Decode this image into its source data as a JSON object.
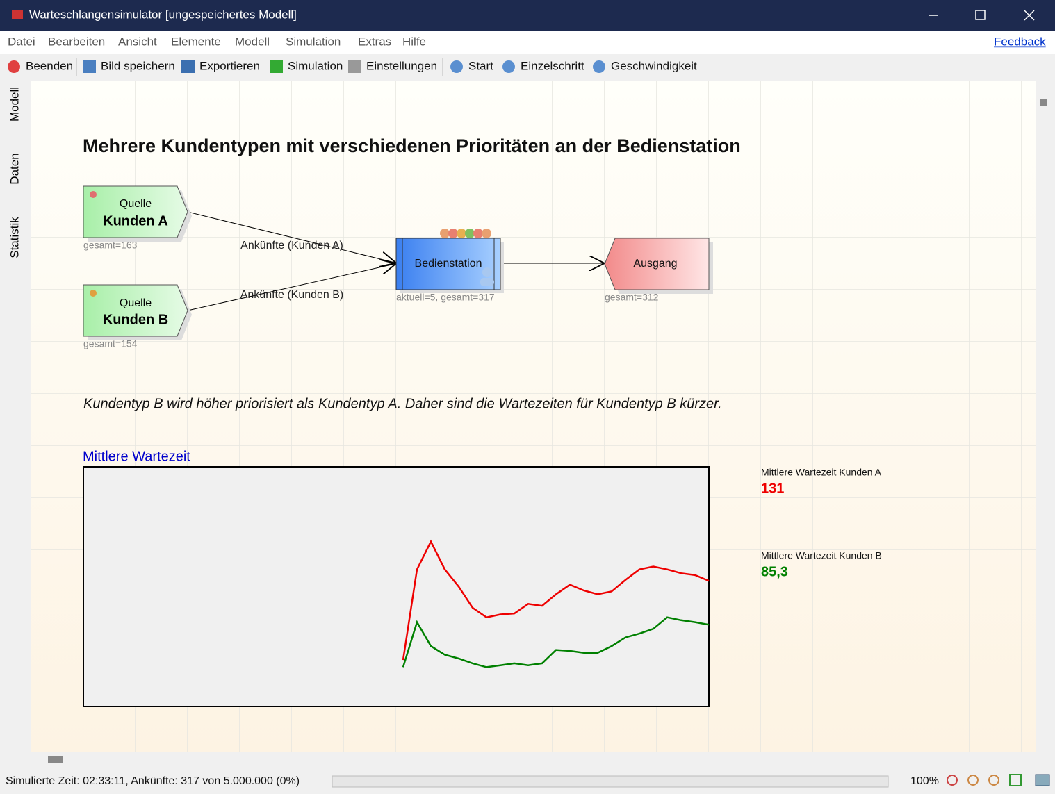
{
  "window": {
    "title": "Warteschlangensimulator [ungespeichertes Modell]"
  },
  "menu": [
    "Datei",
    "Bearbeiten",
    "Ansicht",
    "Elemente",
    "Modell",
    "Simulation",
    "Extras",
    "Hilfe"
  ],
  "feedback": "Feedback",
  "toolbar": [
    "Beenden",
    "Bild speichern",
    "Exportieren",
    "Simulation",
    "Einstellungen",
    "Start",
    "Einzelschritt",
    "Geschwindigkeit"
  ],
  "sidebar": [
    "Modell",
    "Daten",
    "Statistik"
  ],
  "model": {
    "title": "Mehrere Kundentypen mit verschiedenen Prioritäten an der Bedienstation",
    "nodes": [
      {
        "type": "Quelle",
        "label": "Kunden A",
        "info": "gesamt=163"
      },
      {
        "type": "Quelle",
        "label": "Kunden B",
        "info": "gesamt=154"
      },
      {
        "label": "Bedienstation",
        "info": "aktuell=5, gesamt=317"
      },
      {
        "label": "Ausgang",
        "info": "gesamt=312"
      }
    ],
    "edges": [
      {
        "label": "Ankünfte (Kunden A)"
      },
      {
        "label": "Ankünfte (Kunden B)"
      }
    ],
    "note": "Kundentyp B wird höher priorisiert als Kundentyp A. Daher sind die Wartezeiten für Kundentyp B kürzer."
  },
  "chart_data": {
    "type": "line",
    "title": "Mittlere Wartezeit",
    "ylim": [
      0,
      250
    ],
    "series": [
      {
        "name": "Mittlere Wartezeit Kunden A",
        "color": "#ee0000",
        "display": "131",
        "values": [
          null,
          null,
          null,
          null,
          null,
          null,
          null,
          null,
          null,
          null,
          null,
          null,
          null,
          null,
          null,
          null,
          null,
          null,
          null,
          null,
          null,
          null,
          null,
          48.5,
          143,
          172,
          143,
          125,
          103,
          93,
          96,
          97,
          107,
          105,
          117,
          127,
          121,
          117,
          120,
          132,
          143,
          146,
          143,
          139,
          137,
          131
        ]
      },
      {
        "name": "Mittlere Wartezeit Kunden B",
        "color": "#008000",
        "display": "85,3",
        "values": [
          null,
          null,
          null,
          null,
          null,
          null,
          null,
          null,
          null,
          null,
          null,
          null,
          null,
          null,
          null,
          null,
          null,
          null,
          null,
          null,
          null,
          null,
          null,
          41,
          88,
          63,
          54,
          50,
          45,
          41,
          43,
          45,
          43,
          45,
          59,
          58,
          56,
          56,
          63,
          72,
          76,
          81,
          93,
          90,
          88,
          85.3
        ]
      }
    ]
  },
  "status": {
    "text": "Simulierte Zeit: 02:33:11, Ankünfte: 317 von 5.000.000 (0%)",
    "zoom": "100%"
  }
}
